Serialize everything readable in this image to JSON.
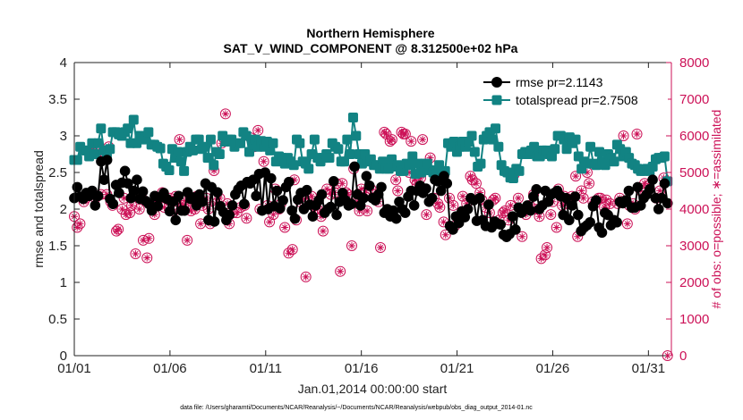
{
  "chart_data": {
    "type": "line",
    "title": "Northern Hemisphere",
    "subtitle": "SAT_V_WIND_COMPONENT @ 8.312500e+02 hPa",
    "xlabel": "Jan.01,2014 00:00:00 start",
    "ylabel": "rmse and totalspread",
    "y2label": "# of obs: o=possible; ∗=assimilated",
    "footer": "data file: /Users/gharamti/Documents/NCAR/Reanalysis/~/Documents/NCAR/Reanalysis/webpub/obs_diag_output_2014-01.nc",
    "x_ticks": [
      "01/01",
      "01/06",
      "01/11",
      "01/16",
      "01/21",
      "01/26",
      "01/31"
    ],
    "y_ticks": [
      "0",
      "0.5",
      "1",
      "1.5",
      "2",
      "2.5",
      "3",
      "3.5",
      "4"
    ],
    "y2_ticks": [
      "0",
      "1000",
      "2000",
      "3000",
      "4000",
      "5000",
      "6000",
      "7000",
      "8000"
    ],
    "ylim": [
      0,
      4
    ],
    "y2lim": [
      0,
      8000
    ],
    "xlim": [
      1,
      32.2
    ],
    "legend_position": "top-right",
    "series": [
      {
        "name": "rmse pr=2.1143",
        "axis": "left",
        "color": "#000000",
        "marker": "circle",
        "values": [
          2.15,
          2.3,
          2.17,
          2.14,
          2.22,
          2.18,
          2.25,
          2.05,
          2.18,
          2.65,
          2.4,
          2.67,
          2.14,
          2.07,
          2.33,
          2.22,
          2.36,
          2.52,
          2.35,
          2.15,
          2.25,
          2.4,
          2.14,
          2.24,
          2.11,
          2.07,
          1.98,
          2.18,
          2.04,
          2.16,
          2.22,
          2.14,
          1.97,
          2.1,
          1.85,
          2.18,
          1.98,
          1.98,
          2.23,
          2.14,
          2.16,
          2.05,
          2.2,
          2.1,
          2.35,
          1.85,
          2.3,
          1.83,
          2.23,
          2.04,
          1.96,
          1.85,
          1.92,
          2.05,
          2.2,
          2.27,
          2.32,
          2.07,
          2.37,
          2.35,
          2.4,
          2.18,
          2.48,
          1.98,
          2.5,
          2.0,
          2.42,
          2.04,
          2.25,
          2.01,
          2.12,
          2.3,
          2.37,
          1.98,
          1.87,
          2.13,
          2.22,
          2.0,
          2.26,
          2.06,
          1.9,
          2.05,
          2.12,
          2.2,
          1.95,
          2.0,
          2.03,
          2.38,
          1.92,
          2.1,
          2.22,
          2.12,
          2.05,
          2.07,
          2.58,
          2.2,
          2.05,
          2.15,
          2.45,
          2.32,
          2.15,
          2.12,
          2.2,
          2.3,
          1.95,
          2.0,
          1.9,
          1.98,
          1.87,
          2.1,
          2.0,
          1.95,
          2.17,
          2.25,
          2.05,
          2.25,
          2.32,
          2.22,
          2.28,
          2.1,
          2.15,
          2.4,
          2.38,
          2.25,
          2.45,
          2.35,
          1.77,
          1.72,
          1.9,
          1.81,
          1.97,
          1.89,
          2.0,
          2.15,
          2.12,
          1.84,
          2.15,
          1.85,
          1.77,
          2.06,
          1.75,
          1.83,
          1.8,
          1.79,
          1.65,
          1.62,
          1.66,
          1.9,
          1.72,
          2.02,
          1.95,
          2.0,
          2.05,
          1.98,
          2.17,
          2.27,
          2.0,
          2.05,
          2.25,
          2.1,
          2.2,
          2.22,
          2.25,
          2.18,
          1.92,
          2.15,
          1.85,
          2.05,
          2.17,
          1.92,
          1.7,
          1.75,
          1.78,
          1.82,
          2.04,
          2.12,
          1.75,
          1.68,
          1.95,
          1.92,
          1.78,
          1.85,
          1.82,
          2.1,
          2.08,
          2.12,
          2.25,
          2.02,
          2.02,
          2.3,
          2.05,
          2.15,
          2.2,
          2.27,
          2.4,
          2.15,
          2.0,
          2.15,
          2.35,
          2.08
        ]
      },
      {
        "name": "totalspread pr=2.7508",
        "axis": "left",
        "color": "#128383",
        "marker": "square",
        "values": [
          2.67,
          2.67,
          2.85,
          2.8,
          2.8,
          2.72,
          2.9,
          2.75,
          2.9,
          3.1,
          2.8,
          2.72,
          2.82,
          3.05,
          3.05,
          3.02,
          3.0,
          3.05,
          3.1,
          2.9,
          3.22,
          2.9,
          3.0,
          2.95,
          3.0,
          3.05,
          2.88,
          2.88,
          2.85,
          2.83,
          2.62,
          2.58,
          2.53,
          2.82,
          2.7,
          2.78,
          2.65,
          2.52,
          2.78,
          2.85,
          2.8,
          2.95,
          2.95,
          2.82,
          2.85,
          2.7,
          2.95,
          2.6,
          2.78,
          2.75,
          3.0,
          2.92,
          2.95,
          2.95,
          2.85,
          2.9,
          2.9,
          3.05,
          3.0,
          2.78,
          2.88,
          2.95,
          2.85,
          2.93,
          2.85,
          2.92,
          2.8,
          2.9,
          2.65,
          2.72,
          2.7,
          2.62,
          2.7,
          2.65,
          2.6,
          2.95,
          2.9,
          2.65,
          2.62,
          2.55,
          2.75,
          2.95,
          2.7,
          2.65,
          2.7,
          2.75,
          2.7,
          2.9,
          2.85,
          2.82,
          2.65,
          2.65,
          2.95,
          2.75,
          3.25,
          3.0,
          2.75,
          2.62,
          2.75,
          2.65,
          2.68,
          2.6,
          2.6,
          2.55,
          2.65,
          2.55,
          2.55,
          2.68,
          2.58,
          2.6,
          2.52,
          2.52,
          2.62,
          2.6,
          2.72,
          2.48,
          2.62,
          2.5,
          2.62,
          2.62,
          2.53,
          2.5,
          2.48,
          2.6,
          2.4,
          2.52,
          2.9,
          2.85,
          2.92,
          2.78,
          2.85,
          2.92,
          2.85,
          2.92,
          3.0,
          2.78,
          2.58,
          2.62,
          2.95,
          3.0,
          3.05,
          2.95,
          3.1,
          2.85,
          2.6,
          2.52,
          2.5,
          2.43,
          2.42,
          2.55,
          2.52,
          2.75,
          2.78,
          2.75,
          2.8,
          2.85,
          2.72,
          2.72,
          2.8,
          2.8,
          2.75,
          2.72,
          2.82,
          3.0,
          3.0,
          2.95,
          2.82,
          2.98,
          2.9,
          2.95,
          2.72,
          2.55,
          2.65,
          2.62,
          2.85,
          2.62,
          2.6,
          2.78,
          2.65,
          2.6,
          2.75,
          2.7,
          2.65,
          2.88,
          2.82,
          2.72,
          2.78,
          2.7,
          2.62,
          2.6,
          2.55,
          2.52,
          2.52,
          2.55,
          2.52,
          2.58,
          2.68,
          2.7,
          2.7,
          2.72,
          2.38
        ]
      },
      {
        "name": "# obs possible",
        "axis": "right",
        "color": "#cc1157",
        "marker": "open-circle",
        "points": [
          [
            1.0,
            3800
          ],
          [
            1.15,
            3500
          ],
          [
            1.3,
            3600
          ],
          [
            1.5,
            4200
          ],
          [
            1.6,
            4300
          ],
          [
            1.8,
            5600
          ],
          [
            1.9,
            5500
          ],
          [
            2.0,
            5550
          ],
          [
            2.1,
            4300
          ],
          [
            2.2,
            5600
          ],
          [
            2.4,
            4400
          ],
          [
            2.5,
            5400
          ],
          [
            2.6,
            5500
          ],
          [
            2.7,
            4400
          ],
          [
            2.8,
            5700
          ],
          [
            2.9,
            4200
          ],
          [
            3.0,
            4100
          ],
          [
            3.2,
            3400
          ],
          [
            3.3,
            3450
          ],
          [
            3.5,
            4000
          ],
          [
            3.6,
            4300
          ],
          [
            3.7,
            3850
          ],
          [
            3.9,
            3900
          ],
          [
            4.0,
            4100
          ],
          [
            4.2,
            2780
          ],
          [
            4.4,
            4000
          ],
          [
            4.5,
            4400
          ],
          [
            4.6,
            3150
          ],
          [
            4.8,
            2670
          ],
          [
            4.9,
            3200
          ],
          [
            5.1,
            4100
          ],
          [
            5.2,
            3850
          ],
          [
            5.4,
            4300
          ],
          [
            5.6,
            4450
          ],
          [
            5.7,
            4050
          ],
          [
            5.9,
            4250
          ],
          [
            6.0,
            4300
          ],
          [
            6.2,
            3950
          ],
          [
            6.3,
            4350
          ],
          [
            6.5,
            5900
          ],
          [
            6.6,
            4150
          ],
          [
            6.7,
            4100
          ],
          [
            6.9,
            3150
          ],
          [
            7.0,
            4250
          ],
          [
            7.1,
            3950
          ],
          [
            7.3,
            4000
          ],
          [
            7.4,
            4350
          ],
          [
            7.6,
            3600
          ],
          [
            7.7,
            4100
          ],
          [
            7.9,
            4300
          ],
          [
            8.0,
            4000
          ],
          [
            8.1,
            3600
          ],
          [
            8.3,
            5050
          ],
          [
            8.4,
            4150
          ],
          [
            8.6,
            4300
          ],
          [
            8.7,
            5800
          ],
          [
            8.9,
            6600
          ],
          [
            9.0,
            4150
          ],
          [
            9.1,
            3600
          ],
          [
            9.3,
            3900
          ],
          [
            9.5,
            3900
          ],
          [
            9.7,
            4050
          ],
          [
            9.9,
            4100
          ],
          [
            10.0,
            3750
          ],
          [
            10.2,
            5950
          ],
          [
            10.4,
            5700
          ],
          [
            10.6,
            6150
          ],
          [
            10.7,
            4000
          ],
          [
            10.9,
            5300
          ],
          [
            11.1,
            4100
          ],
          [
            11.2,
            3650
          ],
          [
            11.4,
            3850
          ],
          [
            11.5,
            4550
          ],
          [
            11.7,
            4000
          ],
          [
            11.8,
            4150
          ],
          [
            12.0,
            3500
          ],
          [
            12.2,
            2800
          ],
          [
            12.4,
            2900
          ],
          [
            12.5,
            4800
          ],
          [
            12.6,
            3700
          ],
          [
            12.8,
            4200
          ],
          [
            12.9,
            4400
          ],
          [
            13.1,
            2150
          ],
          [
            13.2,
            4300
          ],
          [
            13.4,
            4350
          ],
          [
            13.6,
            4000
          ],
          [
            13.7,
            4000
          ],
          [
            13.9,
            3800
          ],
          [
            14.0,
            3400
          ],
          [
            14.2,
            4550
          ],
          [
            14.4,
            4400
          ],
          [
            14.6,
            4450
          ],
          [
            14.7,
            4700
          ],
          [
            14.9,
            2300
          ],
          [
            15.0,
            4700
          ],
          [
            15.2,
            4450
          ],
          [
            15.3,
            4400
          ],
          [
            15.5,
            3000
          ],
          [
            15.6,
            5100
          ],
          [
            15.8,
            4200
          ],
          [
            15.9,
            3950
          ],
          [
            16.0,
            4550
          ],
          [
            16.2,
            4450
          ],
          [
            16.3,
            3950
          ],
          [
            16.5,
            4550
          ],
          [
            16.7,
            4400
          ],
          [
            16.9,
            4200
          ],
          [
            17.0,
            2950
          ],
          [
            17.2,
            6100
          ],
          [
            17.3,
            6050
          ],
          [
            17.5,
            5850
          ],
          [
            17.6,
            5900
          ],
          [
            17.8,
            4800
          ],
          [
            17.9,
            4500
          ],
          [
            18.1,
            6100
          ],
          [
            18.2,
            6050
          ],
          [
            18.3,
            6050
          ],
          [
            18.5,
            5000
          ],
          [
            18.6,
            5850
          ],
          [
            18.8,
            4800
          ],
          [
            18.9,
            4700
          ],
          [
            19.1,
            4850
          ],
          [
            19.2,
            5900
          ],
          [
            19.4,
            3850
          ],
          [
            19.6,
            5400
          ],
          [
            19.8,
            4300
          ],
          [
            20.0,
            4150
          ],
          [
            20.1,
            4050
          ],
          [
            20.3,
            3650
          ],
          [
            20.4,
            3300
          ],
          [
            20.6,
            4300
          ],
          [
            20.8,
            4100
          ],
          [
            20.9,
            3550
          ],
          [
            21.1,
            3700
          ],
          [
            21.3,
            4350
          ],
          [
            21.5,
            4150
          ],
          [
            21.7,
            4900
          ],
          [
            21.8,
            4800
          ],
          [
            22.0,
            4700
          ],
          [
            22.2,
            4450
          ],
          [
            22.3,
            4250
          ],
          [
            22.5,
            4050
          ],
          [
            22.7,
            3900
          ],
          [
            22.9,
            4250
          ],
          [
            23.0,
            4300
          ],
          [
            23.2,
            3700
          ],
          [
            23.4,
            3900
          ],
          [
            23.5,
            3950
          ],
          [
            23.7,
            3700
          ],
          [
            23.8,
            4100
          ],
          [
            24.0,
            4950
          ],
          [
            24.2,
            4300
          ],
          [
            24.4,
            3250
          ],
          [
            24.6,
            3850
          ],
          [
            24.8,
            4100
          ],
          [
            25.0,
            4400
          ],
          [
            25.1,
            4000
          ],
          [
            25.3,
            3800
          ],
          [
            25.4,
            2650
          ],
          [
            25.6,
            2750
          ],
          [
            25.7,
            2950
          ],
          [
            25.9,
            3850
          ],
          [
            26.0,
            4200
          ],
          [
            26.2,
            3500
          ],
          [
            26.3,
            4550
          ],
          [
            26.5,
            4100
          ],
          [
            26.6,
            4350
          ],
          [
            26.8,
            4150
          ],
          [
            27.0,
            4350
          ],
          [
            27.2,
            4900
          ],
          [
            27.3,
            3250
          ],
          [
            27.5,
            4500
          ],
          [
            27.6,
            4300
          ],
          [
            27.8,
            5000
          ],
          [
            27.9,
            4700
          ],
          [
            28.1,
            4200
          ],
          [
            28.2,
            4150
          ],
          [
            28.4,
            4300
          ],
          [
            28.5,
            4300
          ],
          [
            28.7,
            4050
          ],
          [
            28.8,
            4250
          ],
          [
            29.0,
            4150
          ],
          [
            29.2,
            7300
          ],
          [
            29.4,
            4150
          ],
          [
            29.5,
            4300
          ],
          [
            29.7,
            6000
          ],
          [
            29.9,
            3600
          ],
          [
            30.0,
            4100
          ],
          [
            30.2,
            4150
          ],
          [
            30.3,
            4000
          ],
          [
            30.4,
            6050
          ],
          [
            30.6,
            4500
          ],
          [
            30.8,
            4700
          ],
          [
            31.0,
            4650
          ],
          [
            31.2,
            7350
          ],
          [
            31.4,
            4300
          ],
          [
            31.6,
            4500
          ],
          [
            31.8,
            4850
          ],
          [
            32.0,
            0
          ]
        ]
      },
      {
        "name": "# obs assimilated",
        "axis": "right",
        "color": "#cc1157",
        "marker": "asterisk",
        "points": "same as # obs possible"
      }
    ]
  }
}
